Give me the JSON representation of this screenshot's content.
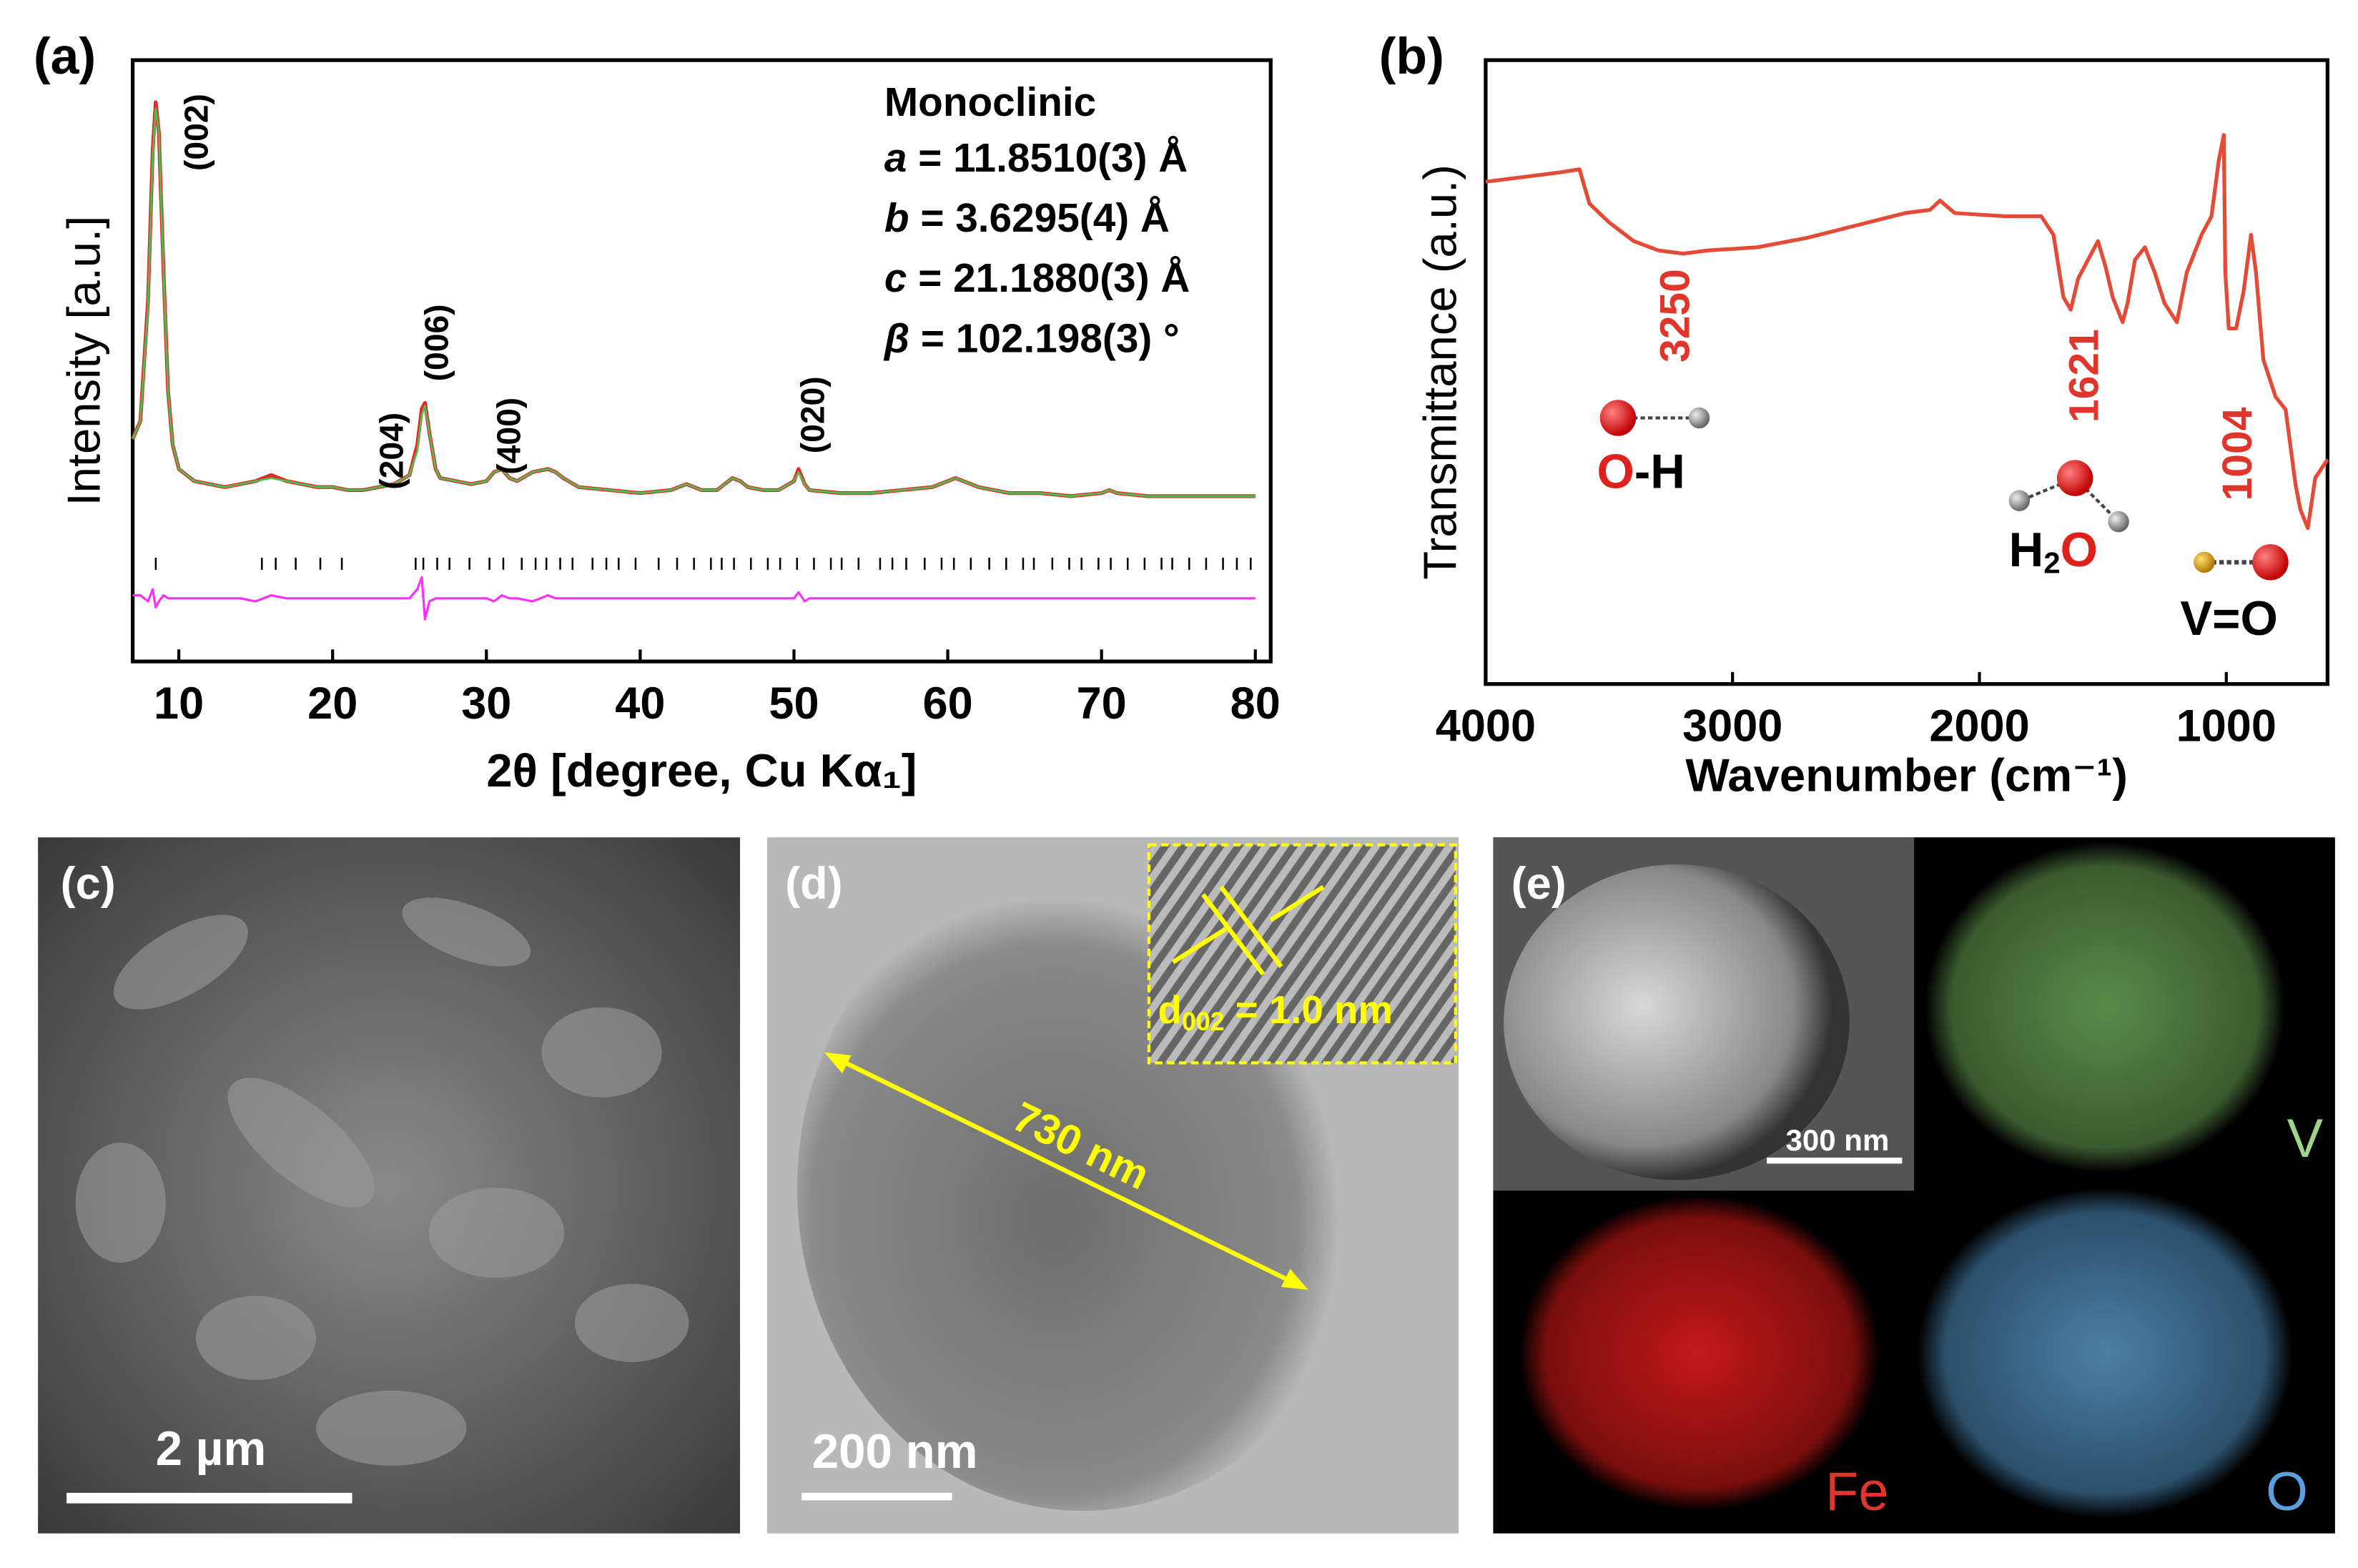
{
  "chart_data": [
    {
      "type": "line",
      "panel_label": "(a)",
      "xlabel": "2θ [degree, Cu Kα₁]",
      "ylabel": "Intensity [a.u.]",
      "xlim": [
        7,
        81
      ],
      "xticks": [
        10,
        20,
        30,
        40,
        50,
        60,
        70,
        80
      ],
      "ylim": [
        0,
        100
      ],
      "x": [
        7,
        7.5,
        8,
        8.3,
        8.5,
        8.7,
        9,
        9.3,
        9.6,
        10,
        11,
        12,
        13,
        14,
        15,
        16,
        17,
        18,
        19,
        20,
        21,
        22,
        23,
        24,
        25,
        25.5,
        25.8,
        26,
        26.3,
        26.7,
        27,
        28,
        29,
        30,
        30.5,
        31,
        31.5,
        32,
        33,
        34,
        34.5,
        35,
        36,
        38,
        40,
        42,
        43,
        44,
        45,
        46,
        46.5,
        47,
        48,
        49,
        50,
        50.3,
        50.7,
        51,
        53,
        55,
        57,
        59,
        60,
        60.5,
        61,
        62,
        64,
        66,
        68,
        70,
        70.5,
        71,
        73,
        75,
        77,
        80
      ],
      "series": [
        {
          "color": "#e8262a",
          "values": [
            37,
            40,
            60,
            85,
            93,
            88,
            65,
            45,
            36,
            32,
            30,
            29.5,
            29,
            29.5,
            30,
            31,
            30,
            29.5,
            29,
            29,
            28.5,
            28.5,
            29,
            29.5,
            31,
            36,
            42,
            43,
            38,
            32,
            30.5,
            30,
            29.5,
            30,
            31.5,
            32,
            30.5,
            30,
            31.5,
            32,
            31.5,
            30.5,
            29,
            28.5,
            28,
            28.5,
            29.5,
            28.5,
            28.5,
            30.5,
            30,
            29,
            28.5,
            28.5,
            30,
            32,
            29.5,
            28.5,
            28,
            28,
            28.5,
            29,
            30,
            30.5,
            30,
            29,
            28,
            28,
            27.5,
            28,
            28.5,
            28,
            27.5,
            27.5,
            27.5,
            27.5
          ]
        },
        {
          "color": "#4cc04c",
          "values": [
            37,
            40,
            59,
            84,
            92,
            88,
            65,
            45,
            36,
            32,
            30,
            29.5,
            29,
            29.5,
            30,
            30.5,
            30,
            29.5,
            29,
            29,
            28.5,
            28.5,
            29,
            29.5,
            31,
            35,
            41,
            42.5,
            38,
            32,
            30.5,
            30,
            29.5,
            30,
            31.5,
            32,
            30.5,
            30,
            31.5,
            32,
            31.5,
            30.5,
            29,
            28.5,
            28,
            28.5,
            29.5,
            28.5,
            28.5,
            30.5,
            30,
            29,
            28.5,
            28.5,
            30,
            31.5,
            29.5,
            28.5,
            28,
            28,
            28.5,
            29,
            30,
            30.5,
            30,
            29,
            28,
            28,
            27.5,
            28,
            28.5,
            28,
            27.5,
            27.5,
            27.5,
            27.5
          ]
        },
        {
          "color": "#ff2bff",
          "values": [
            11,
            11,
            10,
            12,
            9,
            10,
            11,
            10.5,
            10.5,
            10.5,
            10.5,
            10.5,
            10.5,
            10.5,
            10,
            11,
            10.5,
            10.5,
            10.5,
            10.5,
            10.5,
            10.5,
            10.5,
            10.5,
            10.5,
            12,
            14,
            7,
            10,
            10.5,
            10.5,
            10.5,
            10.5,
            10.5,
            10,
            11,
            10.5,
            10.5,
            10,
            11,
            10.5,
            10.5,
            10.5,
            10.5,
            10.5,
            10.5,
            10.5,
            10.5,
            10.5,
            10.5,
            10.5,
            10.5,
            10.5,
            10.5,
            10.5,
            11.5,
            10,
            10.5,
            10.5,
            10.5,
            10.5,
            10.5,
            10.5,
            10.5,
            10.5,
            10.5,
            10.5,
            10.5,
            10.5,
            10.5,
            10.5,
            10.5,
            10.5,
            10.5,
            10.5,
            10.5
          ]
        }
      ],
      "reflections": [
        8.5,
        15.4,
        16.3,
        17.6,
        19.2,
        20.6,
        25.4,
        25.9,
        26.8,
        27.6,
        28.9,
        30.2,
        31.1,
        32.3,
        33.2,
        33.9,
        34.8,
        35.6,
        36.9,
        37.8,
        38.6,
        39.7,
        41.2,
        42.4,
        43.5,
        44.6,
        45.3,
        46.1,
        47.2,
        48.3,
        49.1,
        50.2,
        51.3,
        52.4,
        53.1,
        54.2,
        55.6,
        56.4,
        57.3,
        58.5,
        59.6,
        60.4,
        61.5,
        62.7,
        63.8,
        64.9,
        65.6,
        66.8,
        67.9,
        68.7,
        69.8,
        70.6,
        71.7,
        72.8,
        73.9,
        74.6,
        75.7,
        76.8,
        77.9,
        78.8,
        79.7
      ],
      "peak_labels": [
        "(002)",
        "(204)",
        "(006)",
        "(400)",
        "(020)"
      ],
      "lattice": {
        "title": "Monoclinic",
        "params": [
          [
            "a",
            " = 11.8510(3) Å"
          ],
          [
            "b",
            " = 3.6295(4) Å"
          ],
          [
            "c",
            " = 21.1880(3) Å"
          ],
          [
            "β",
            " = 102.198(3) °"
          ]
        ]
      }
    },
    {
      "type": "line",
      "panel_label": "(b)",
      "xlabel": "Wavenumber (cm⁻¹)",
      "ylabel": "Transmittance (a.u.)",
      "xlim": [
        4000,
        590
      ],
      "xticks": [
        4000,
        3000,
        2000,
        1000
      ],
      "ylim": [
        0,
        100
      ],
      "x": [
        4000,
        3700,
        3620,
        3580,
        3500,
        3400,
        3300,
        3200,
        3100,
        2900,
        2700,
        2500,
        2300,
        2200,
        2160,
        2100,
        1900,
        1750,
        1700,
        1660,
        1630,
        1600,
        1560,
        1520,
        1490,
        1460,
        1420,
        1400,
        1370,
        1330,
        1290,
        1250,
        1200,
        1160,
        1100,
        1060,
        1030,
        1010,
        1004,
        990,
        960,
        930,
        900,
        880,
        850,
        800,
        760,
        720,
        700,
        670,
        640,
        590
      ],
      "series": [
        {
          "color": "#e44a35",
          "values": [
            80.5,
            82,
            82.5,
            77,
            74,
            71,
            69.5,
            69,
            69.5,
            70,
            71.5,
            73.5,
            75.5,
            76,
            77.5,
            75.5,
            75,
            75,
            72,
            62,
            60,
            65,
            68,
            71,
            67,
            62,
            58,
            61,
            68,
            70,
            66,
            61,
            58,
            66,
            72,
            75,
            84,
            88,
            66,
            57,
            57,
            63,
            72,
            66,
            52,
            46,
            44,
            32,
            28,
            25,
            33,
            36
          ]
        }
      ],
      "band_labels": [
        3250,
        1621,
        1004
      ],
      "groups": [
        [
          "O",
          "-H"
        ],
        [
          "H",
          "2",
          "O"
        ],
        [
          "V=O"
        ]
      ]
    }
  ],
  "panels": [
    {
      "label": "(c)",
      "scale_bar": "2 µm"
    },
    {
      "label": "(d)",
      "scale_bar": "200 nm",
      "measurement": "730 nm",
      "inset": [
        "d",
        "002",
        " = 1.0 nm"
      ]
    },
    {
      "label": "(e)",
      "scale_bar": "300 nm",
      "maps": [
        "V",
        "Fe",
        "O"
      ]
    }
  ]
}
